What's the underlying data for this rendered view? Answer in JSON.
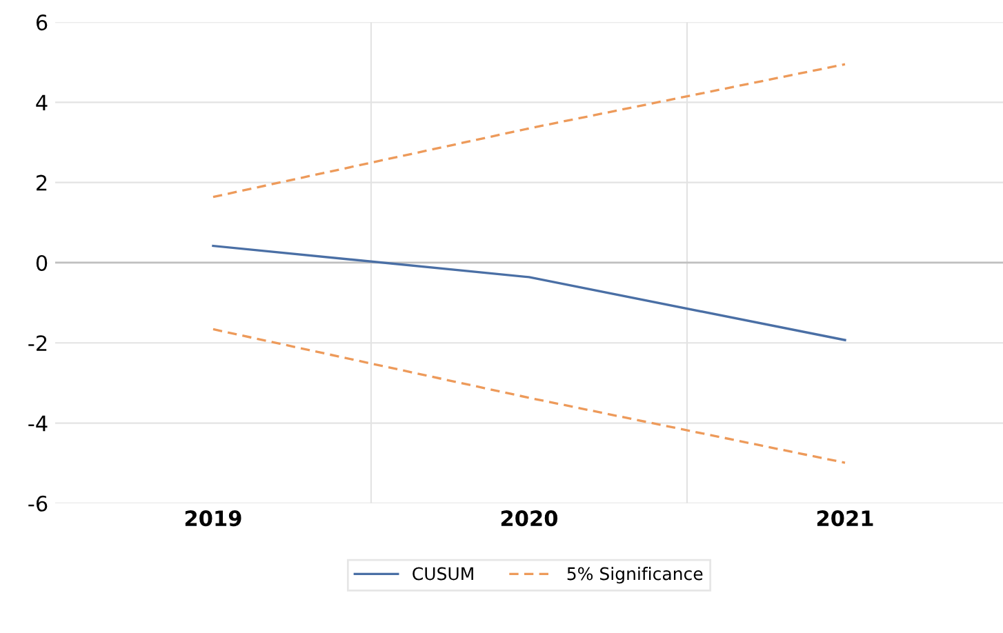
{
  "chart_data": {
    "type": "line",
    "categories": [
      "2019",
      "2020",
      "2021"
    ],
    "series": [
      {
        "name": "CUSUM",
        "color": "#4a6fa5",
        "values": [
          0.42,
          -0.36,
          -1.93
        ],
        "line_style": "solid"
      },
      {
        "name": "5% Significance",
        "color": "#ed9a5a",
        "values": [
          1.64,
          3.35,
          4.95
        ],
        "line_style": "dashed"
      },
      {
        "color": "#ed9a5a",
        "values": [
          -1.66,
          -3.37,
          -4.99
        ],
        "line_style": "dashed"
      }
    ],
    "ylim": [
      -6,
      6
    ],
    "yticks": [
      -6,
      -4,
      -2,
      0,
      2,
      4,
      6
    ],
    "ref_lines": [
      {
        "axis": "y",
        "value": 0,
        "color": "#bfbfbf"
      }
    ],
    "grid": true,
    "legend": "bottom",
    "marker": "none"
  }
}
